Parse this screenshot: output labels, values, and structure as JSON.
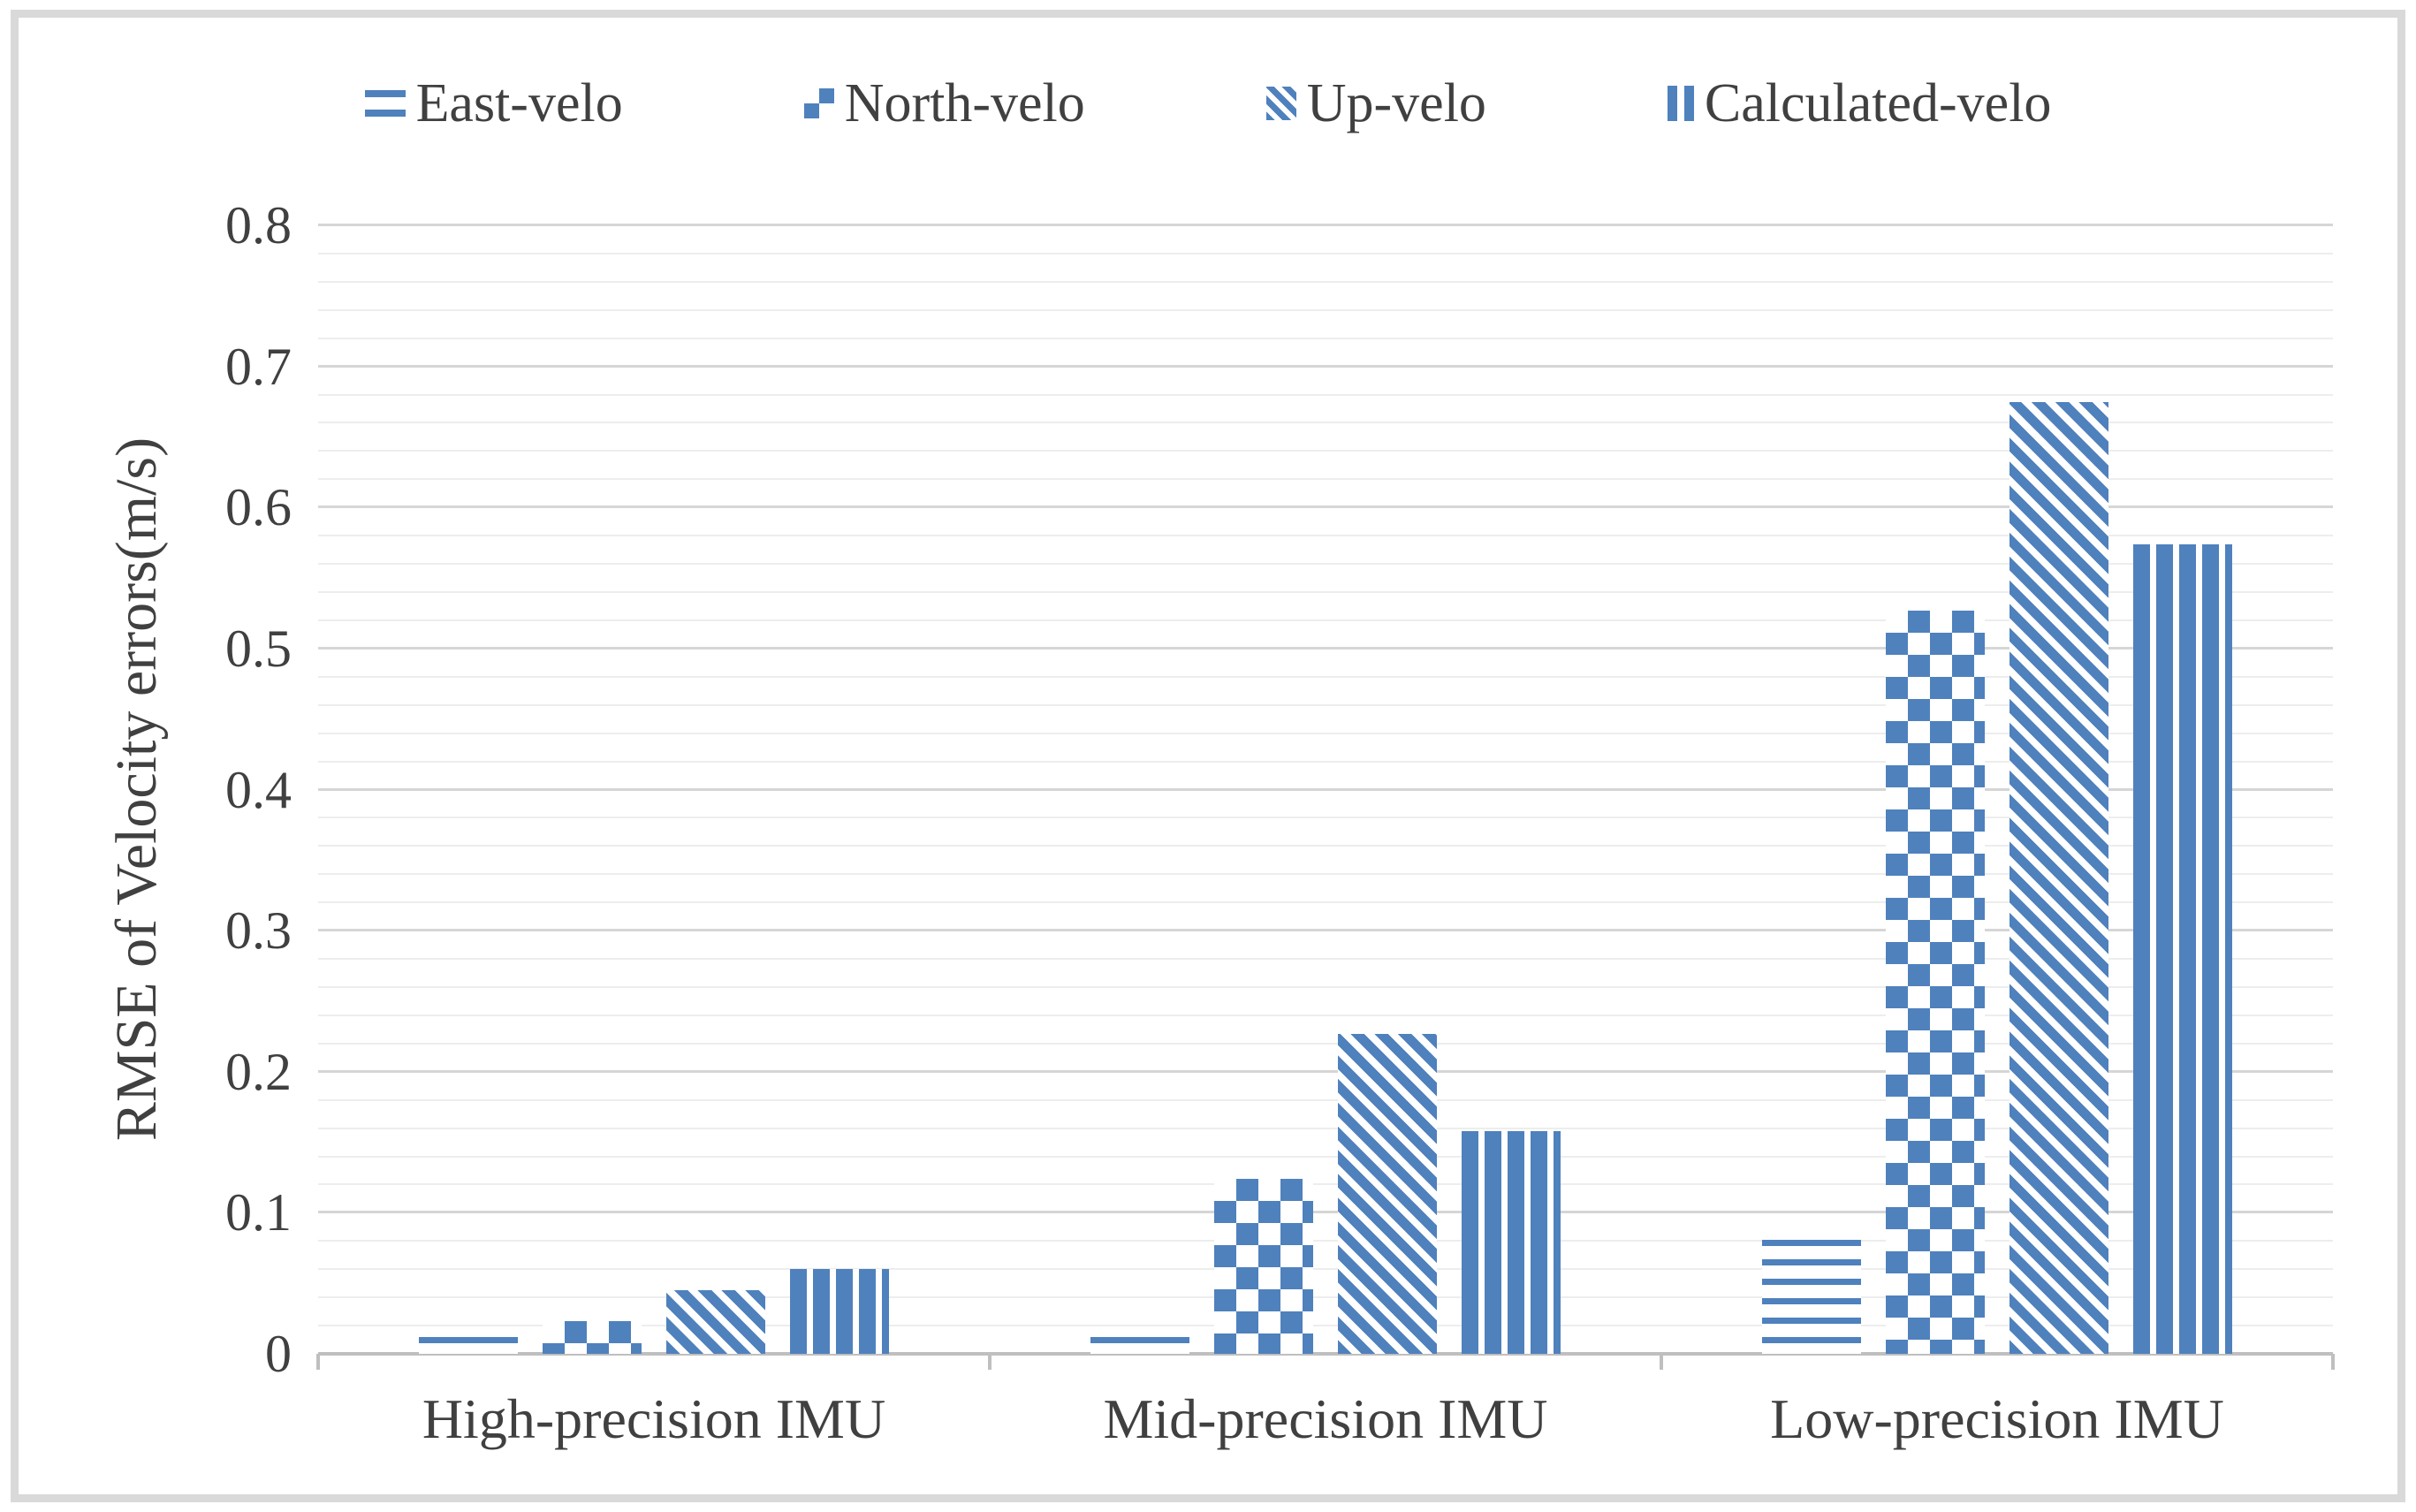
{
  "chart_data": {
    "type": "bar",
    "title": "",
    "categories": [
      "High-precision IMU",
      "Mid-precision IMU",
      "Low-precision IMU"
    ],
    "series": [
      {
        "name": "East-velo",
        "pattern": "horizontal-lines",
        "values": [
          0.012,
          0.012,
          0.081
        ]
      },
      {
        "name": "North-velo",
        "pattern": "checkerboard",
        "values": [
          0.023,
          0.124,
          0.527
        ]
      },
      {
        "name": "Up-velo",
        "pattern": "diagonal-stripes",
        "values": [
          0.045,
          0.227,
          0.675
        ]
      },
      {
        "name": "Calculated-velo",
        "pattern": "vertical-stripes",
        "values": [
          0.06,
          0.158,
          0.574
        ]
      }
    ],
    "xlabel": "",
    "ylabel": "RMSE of Velocity errors(m/s)",
    "ylim": [
      0,
      0.8
    ],
    "ytick_step": 0.1,
    "minor_grid_step": 0.02,
    "ytick_labels": [
      "0",
      "0.1",
      "0.2",
      "0.3",
      "0.4",
      "0.5",
      "0.6",
      "0.7",
      "0.8"
    ],
    "grid": true,
    "legend_position": "top"
  },
  "colors": {
    "bar_blue": "#4F81BD",
    "minor_gridline": "#EDEDED",
    "major_gridline": "#D6D6D6",
    "axis_line": "#BFBFBF",
    "text": "#404040",
    "outer_border": "#D9D9D9",
    "background": "#FFFFFF"
  }
}
